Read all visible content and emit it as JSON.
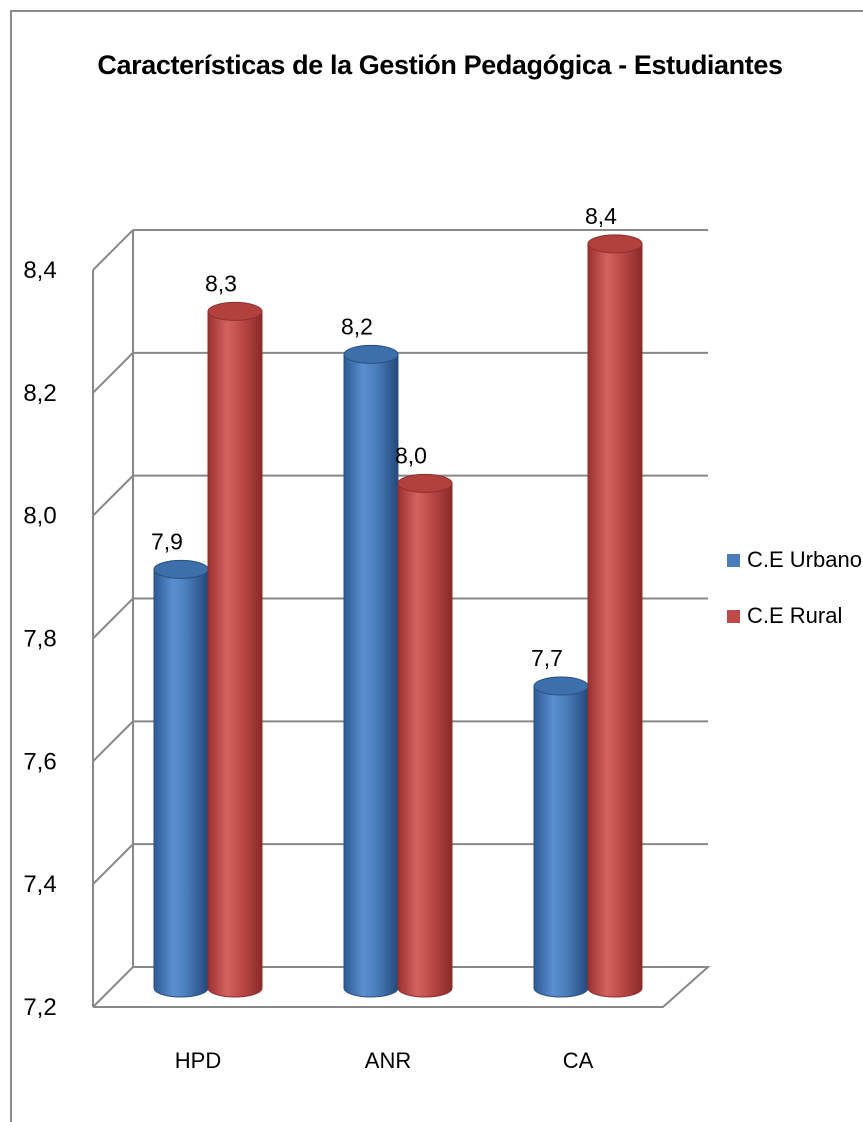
{
  "chart_data": {
    "type": "bar",
    "title": "Características de la Gestión Pedagógica - Estudiantes",
    "xlabel": "",
    "ylabel": "",
    "categories": [
      "HPD",
      "ANR",
      "CA"
    ],
    "series": [
      {
        "name": "C.E Urbano",
        "values": [
          7.88,
          8.23,
          7.69
        ],
        "labels": [
          "7,9",
          "8,2",
          "7,7"
        ],
        "color": "#4a7ebb"
      },
      {
        "name": "C.E Rural",
        "values": [
          8.3,
          8.02,
          8.41
        ],
        "labels": [
          "8,3",
          "8,0",
          "8,4"
        ],
        "color": "#be4b48"
      }
    ],
    "ylim": [
      7.2,
      8.4
    ],
    "yticks": [
      7.2,
      7.4,
      7.6,
      7.8,
      8.0,
      8.2,
      8.4
    ],
    "ytick_labels": [
      "7,2",
      "7,4",
      "7,6",
      "7,8",
      "8,0",
      "8,2",
      "8,4"
    ],
    "grid": true,
    "legend_position": "right",
    "style": "3d-cylinder"
  }
}
